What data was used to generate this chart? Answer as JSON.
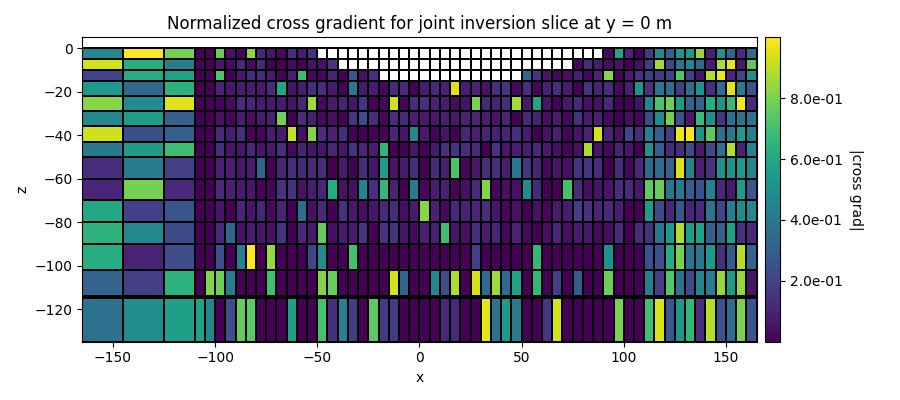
{
  "title": "Normalized cross gradient for joint inversion slice at y = 0 m",
  "xlabel": "x",
  "ylabel": "z",
  "colorbar_label": "|cross grad|",
  "cmap": "viridis",
  "vmin": 0.0,
  "vmax": 1.0,
  "xlim": [
    -165,
    165
  ],
  "ylim": [
    -135,
    5
  ],
  "figsize": [
    9.0,
    4.0
  ],
  "dpi": 100,
  "xticks": [
    -150,
    -100,
    -50,
    0,
    50,
    100,
    150
  ],
  "yticks": [
    0,
    -20,
    -40,
    -60,
    -80,
    -100,
    -120
  ],
  "cb_ticks": [
    0.2,
    0.4,
    0.6,
    0.8
  ],
  "cb_ticklabels": [
    "2.0e-01",
    "4.0e-01",
    "6.0e-01",
    "8.0e-01"
  ],
  "mask_xmin": -50,
  "mask_xmax": 90,
  "linewidths": 0.2,
  "sparsity": 0.06
}
